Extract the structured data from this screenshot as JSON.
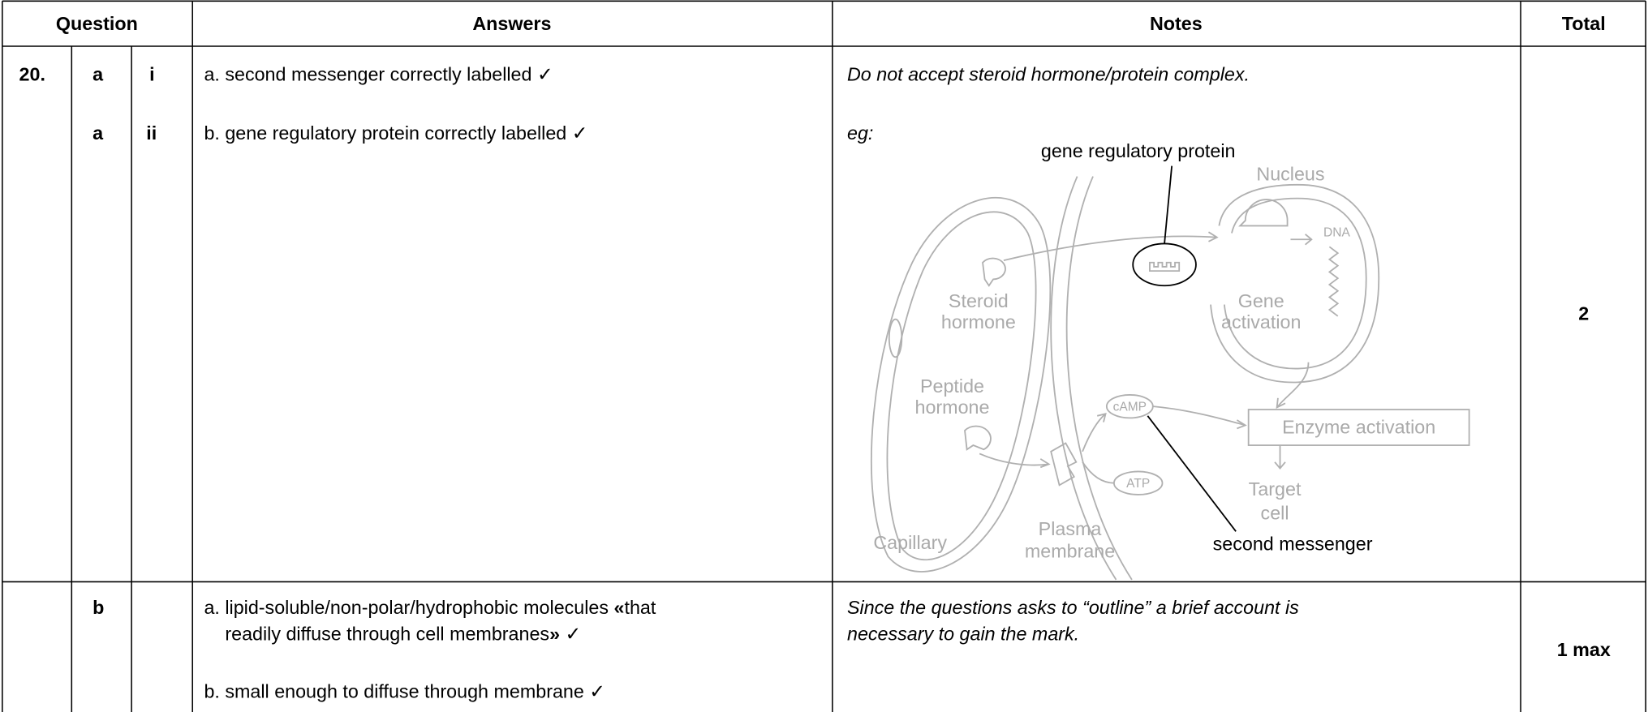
{
  "table": {
    "headers": [
      "Question",
      "Answers",
      "Notes",
      "Total"
    ],
    "rows": [
      {
        "question": "20.",
        "parts": [
          {
            "part": "a",
            "sub": "i",
            "answer": "a. second messenger correctly labelled ✓",
            "note": "Do not accept steroid hormone/protein complex."
          },
          {
            "part": "a",
            "sub": "ii",
            "answer": "b. gene regulatory protein correctly labelled ✓",
            "note": "eg:"
          }
        ],
        "total": "2"
      },
      {
        "part": "b",
        "answer_lines": [
          [
            "a. lipid-soluble/non-polar/hydrophobic molecules ",
            "«",
            "that"
          ],
          [
            "readily diffuse through cell membranes",
            "»",
            " ✓"
          ],
          [
            "b. small enough to diffuse through membrane ✓"
          ]
        ],
        "note_lines": [
          "Since the questions asks to “outline” a brief account is",
          "necessary to gain the mark."
        ],
        "total": "1 max"
      }
    ]
  },
  "diagram": {
    "labels": [
      "gene regulatory protein",
      "Nucleus",
      "DNA",
      "Steroid",
      "hormone",
      "Gene",
      "activation",
      "Peptide",
      "hormone",
      "cAMP",
      "Enzyme activation",
      "ATP",
      "Target",
      "cell",
      "Capillary",
      "Plasma",
      "membrane",
      "second messenger"
    ]
  }
}
